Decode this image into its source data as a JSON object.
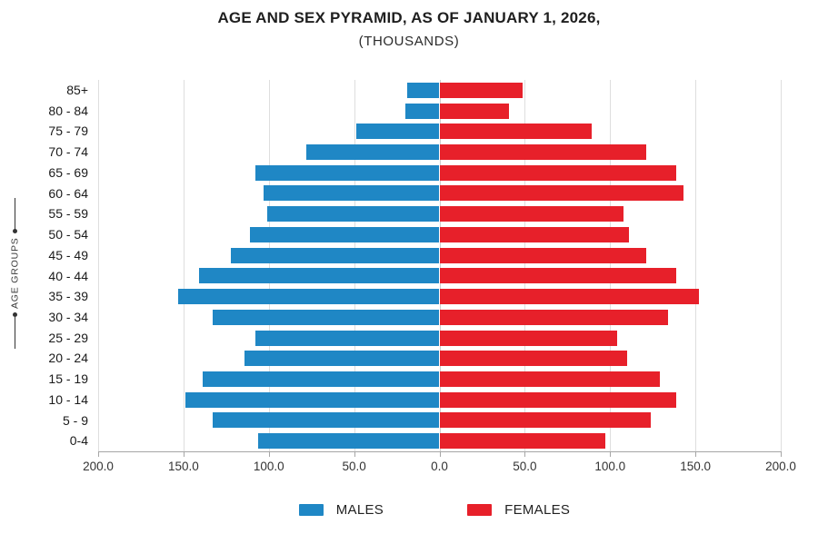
{
  "title": "AGE AND SEX PYRAMID, AS OF JANUARY 1, 2026,",
  "subtitle": "(THOUSANDS)",
  "y_axis_title": "AGE GROUPS",
  "legend": {
    "males_label": "MALES",
    "females_label": "FEMALES"
  },
  "colors": {
    "male": "#1f87c5",
    "female": "#e7202a",
    "gridline": "#dedede",
    "axis": "#a6a6a6"
  },
  "chart_data": {
    "type": "bar",
    "subtype": "population-pyramid",
    "title": "AGE AND SEX PYRAMID, AS OF JANUARY 1, 2026,",
    "subtitle": "(THOUSANDS)",
    "ylabel": "AGE GROUPS",
    "unit": "thousands",
    "grid": "vertical",
    "legend_position": "bottom",
    "categories": [
      "85+",
      "80 - 84",
      "75 - 79",
      "70 - 74",
      "65 - 69",
      "60 - 64",
      "55 - 59",
      "50 - 54",
      "45 - 49",
      "40 - 44",
      "35 - 39",
      "30 - 34",
      "25 - 29",
      "20 - 24",
      "15 - 19",
      "10 - 14",
      "5 - 9",
      "0-4"
    ],
    "series": [
      {
        "name": "MALES",
        "side": "left",
        "color": "#1f87c5",
        "values": [
          19,
          20,
          49,
          78,
          108,
          103,
          101,
          111,
          122,
          141,
          153,
          133,
          108,
          114,
          139,
          149,
          133,
          106
        ]
      },
      {
        "name": "FEMALES",
        "side": "right",
        "color": "#e7202a",
        "values": [
          49,
          41,
          89,
          121,
          139,
          143,
          108,
          111,
          121,
          139,
          152,
          134,
          104,
          110,
          129,
          139,
          124,
          97
        ]
      }
    ],
    "x_tick_labels": [
      "200.0",
      "150.0",
      "100.0",
      "50.0",
      "0.0",
      "50.0",
      "100.0",
      "150.0",
      "200.0"
    ],
    "x_tick_values": [
      -200,
      -150,
      -100,
      -50,
      0,
      50,
      100,
      150,
      200
    ],
    "xlim": [
      -200,
      200
    ]
  }
}
